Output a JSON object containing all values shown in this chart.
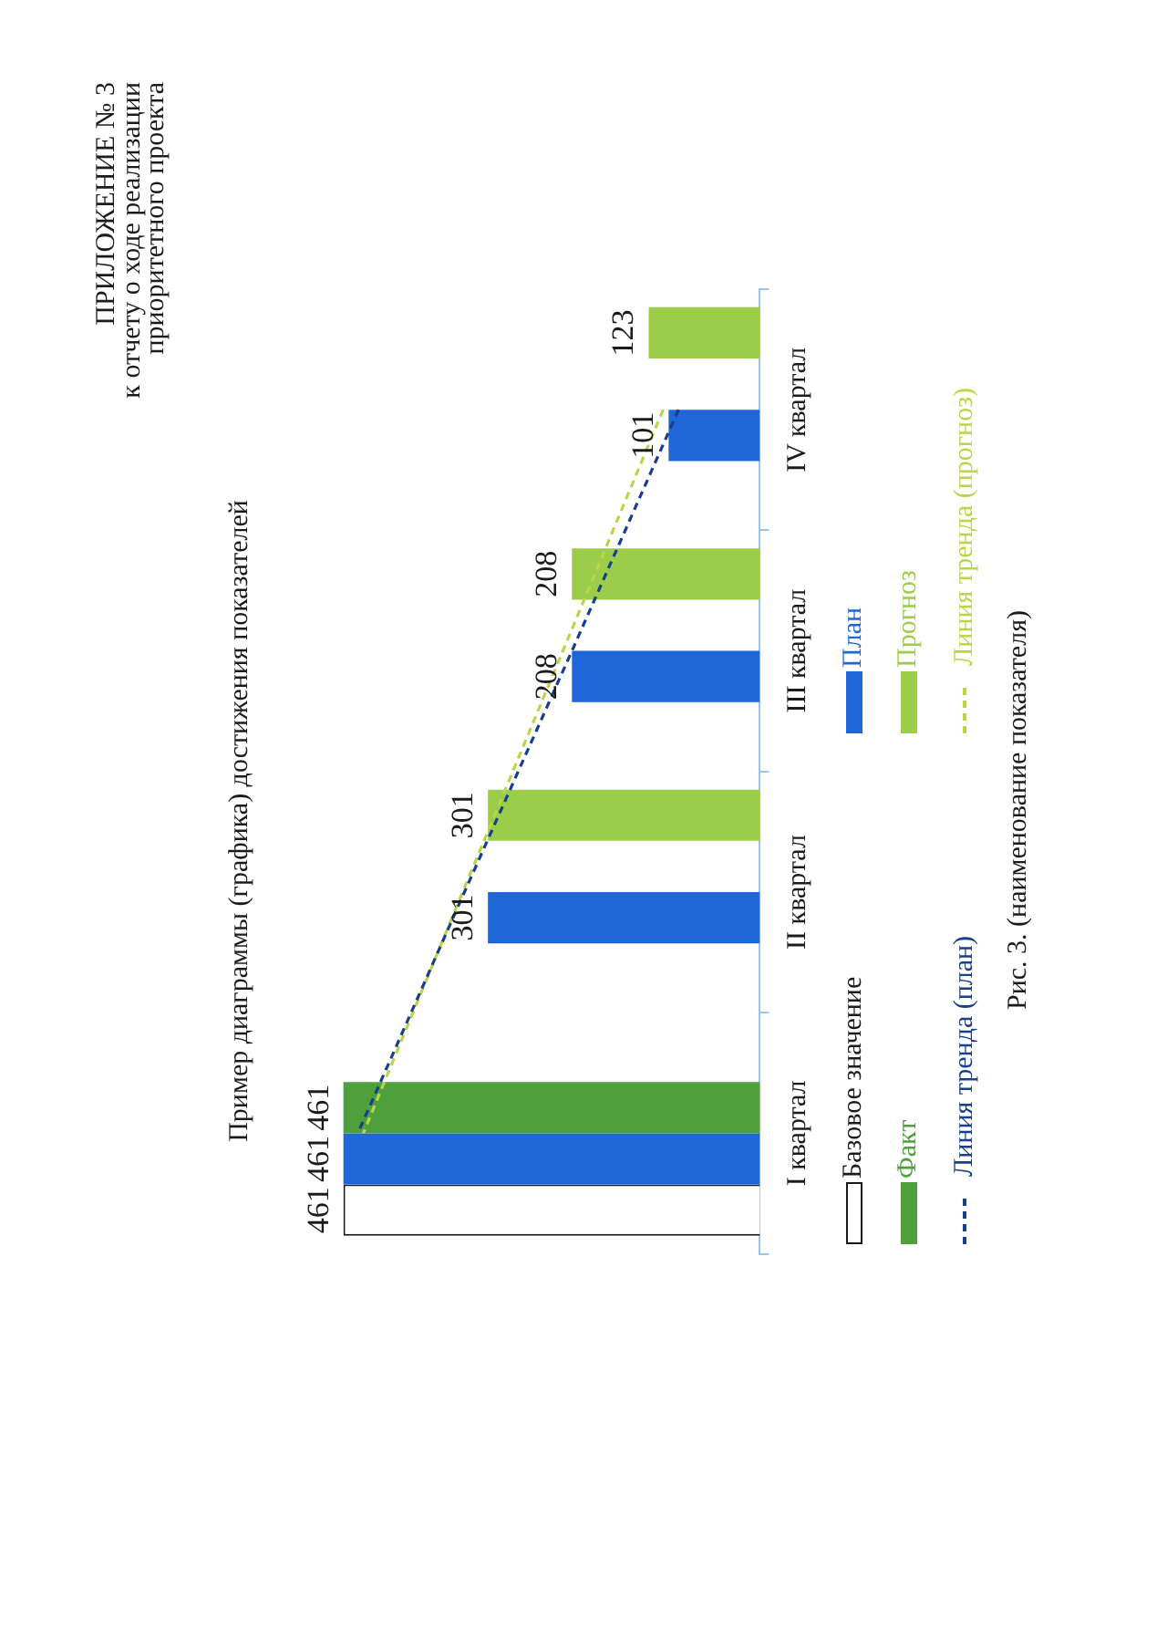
{
  "chart_data": {
    "type": "bar",
    "title": "Пример диаграммы (графика) достижения показателей",
    "orientation": "horizontal",
    "categories": [
      "IV квартал",
      "III квартал",
      "II квартал",
      "I квартал"
    ],
    "series": [
      {
        "name": "Базовое значение",
        "color": "#ffffff",
        "values": [
          null,
          null,
          null,
          461
        ],
        "value_labels": [
          null,
          null,
          null,
          "461"
        ]
      },
      {
        "name": "План",
        "color": "#1f66d9",
        "values": [
          101,
          208,
          301,
          461
        ],
        "value_labels": [
          "101",
          "208",
          "301",
          "461"
        ]
      },
      {
        "name": "Факт",
        "color": "#4ea03c",
        "values": [
          null,
          null,
          null,
          461
        ],
        "value_labels": [
          null,
          null,
          null,
          "461"
        ]
      },
      {
        "name": "Прогноз",
        "color": "#9bcd4b",
        "values": [
          123,
          208,
          301,
          null
        ],
        "value_labels": [
          "123",
          "208",
          "301",
          null
        ]
      },
      {
        "name": "Линия тренда (план)",
        "type": "line",
        "color": "#173f8c",
        "values": [
          90,
          208,
          327,
          445
        ],
        "line_style": "dashed",
        "marker": "none"
      },
      {
        "name": "Линия тренда (прогноз)",
        "type": "line",
        "color": "#b9d64a",
        "values": [
          107,
          218,
          329,
          439
        ],
        "line_style": "dashed",
        "marker": "none"
      }
    ],
    "legend": "right",
    "tick_labels": "y",
    "annotations": [
      "ПРИЛОЖЕНИЕ № 3",
      "к отчету о ходе реализации",
      "приоритетного проекта",
      "Рис. 3. (наименование показателя)"
    ]
  }
}
